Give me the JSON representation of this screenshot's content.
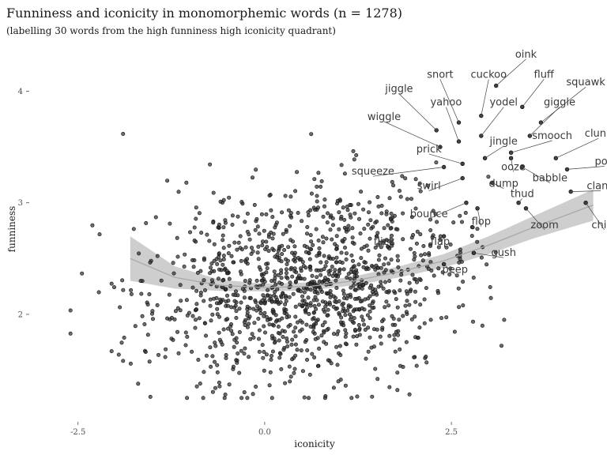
{
  "chart_data": {
    "type": "scatter",
    "title": "Funniness and iconicity in monomorphemic words (n = 1278)",
    "subtitle": "(labelling 30 words from the high funniness high iconicity quadrant)",
    "xlabel": "iconicity",
    "ylabel": "funniness",
    "xlim": [
      -3.1,
      4.5
    ],
    "ylim": [
      1.05,
      4.45
    ],
    "x_ticks": [
      -2.5,
      0.0,
      2.5
    ],
    "x_tick_labels": [
      "-2.5",
      "0.0",
      "2.5"
    ],
    "y_ticks": [
      2,
      3,
      4
    ],
    "y_tick_labels": [
      "2",
      "3",
      "4"
    ],
    "grid": false,
    "n_points": 1278,
    "cloud": {
      "x_mean": 0.55,
      "x_sd": 1.05,
      "y_mean": 2.28,
      "y_sd": 0.42,
      "x_min": -2.6,
      "x_max": 4.45,
      "y_min": 1.25,
      "y_max": 3.75,
      "seed": 1278
    },
    "smooth": {
      "method": "loess",
      "x": [
        -1.8,
        -1.2,
        -0.6,
        0.0,
        0.6,
        1.2,
        1.8,
        2.4,
        3.0,
        3.6,
        4.4
      ],
      "y": [
        2.5,
        2.33,
        2.26,
        2.24,
        2.25,
        2.3,
        2.38,
        2.48,
        2.62,
        2.78,
        2.98
      ],
      "se": [
        0.2,
        0.1,
        0.05,
        0.035,
        0.035,
        0.04,
        0.05,
        0.06,
        0.08,
        0.1,
        0.14
      ]
    },
    "labelled_words": [
      {
        "word": "oink",
        "x": 3.1,
        "y": 4.05,
        "lx": 3.5,
        "ly": 4.33
      },
      {
        "word": "snort",
        "x": 2.6,
        "y": 3.72,
        "lx": 2.35,
        "ly": 4.15
      },
      {
        "word": "cuckoo",
        "x": 2.9,
        "y": 3.78,
        "lx": 3.0,
        "ly": 4.15
      },
      {
        "word": "fluff",
        "x": 3.45,
        "y": 3.86,
        "lx": 3.74,
        "ly": 4.15
      },
      {
        "word": "jiggle",
        "x": 2.3,
        "y": 3.65,
        "lx": 1.8,
        "ly": 4.02
      },
      {
        "word": "squawk",
        "x": 3.7,
        "y": 3.72,
        "lx": 4.3,
        "ly": 4.08
      },
      {
        "word": "yahoo",
        "x": 2.6,
        "y": 3.55,
        "lx": 2.43,
        "ly": 3.9
      },
      {
        "word": "yodel",
        "x": 2.9,
        "y": 3.6,
        "lx": 3.2,
        "ly": 3.9
      },
      {
        "word": "giggle",
        "x": 3.55,
        "y": 3.6,
        "lx": 3.95,
        "ly": 3.9
      },
      {
        "word": "wiggle",
        "x": 2.35,
        "y": 3.5,
        "lx": 1.6,
        "ly": 3.77
      },
      {
        "word": "smooch",
        "x": 3.3,
        "y": 3.45,
        "lx": 3.85,
        "ly": 3.6
      },
      {
        "word": "clunk",
        "x": 3.9,
        "y": 3.4,
        "lx": 4.47,
        "ly": 3.62
      },
      {
        "word": "jingle",
        "x": 2.95,
        "y": 3.4,
        "lx": 3.2,
        "ly": 3.55
      },
      {
        "word": "prick",
        "x": 2.65,
        "y": 3.35,
        "lx": 2.2,
        "ly": 3.48
      },
      {
        "word": "pop",
        "x": 4.05,
        "y": 3.3,
        "lx": 4.55,
        "ly": 3.37
      },
      {
        "word": "ooze",
        "x": 3.3,
        "y": 3.4,
        "lx": 3.33,
        "ly": 3.32
      },
      {
        "word": "squeeze",
        "x": 2.4,
        "y": 3.32,
        "lx": 1.45,
        "ly": 3.28
      },
      {
        "word": "babble",
        "x": 3.45,
        "y": 3.32,
        "lx": 3.82,
        "ly": 3.22
      },
      {
        "word": "swirl",
        "x": 2.65,
        "y": 3.22,
        "lx": 2.2,
        "ly": 3.15
      },
      {
        "word": "dump",
        "x": 3.05,
        "y": 3.18,
        "lx": 3.2,
        "ly": 3.17
      },
      {
        "word": "clang",
        "x": 4.1,
        "y": 3.1,
        "lx": 4.5,
        "ly": 3.15
      },
      {
        "word": "thud",
        "x": 3.4,
        "y": 3.0,
        "lx": 3.45,
        "ly": 3.08
      },
      {
        "word": "bounce",
        "x": 2.7,
        "y": 3.0,
        "lx": 2.2,
        "ly": 2.9
      },
      {
        "word": "flop",
        "x": 2.85,
        "y": 2.95,
        "lx": 2.9,
        "ly": 2.83
      },
      {
        "word": "zoom",
        "x": 3.5,
        "y": 2.95,
        "lx": 3.75,
        "ly": 2.8
      },
      {
        "word": "chirp",
        "x": 4.3,
        "y": 3.0,
        "lx": 4.55,
        "ly": 2.8
      },
      {
        "word": "flick",
        "x": 1.5,
        "y": 2.7,
        "lx": 1.6,
        "ly": 2.65
      },
      {
        "word": "flap",
        "x": 2.4,
        "y": 2.7,
        "lx": 2.35,
        "ly": 2.65
      },
      {
        "word": "gush",
        "x": 2.8,
        "y": 2.55,
        "lx": 3.2,
        "ly": 2.55
      },
      {
        "word": "peep",
        "x": 2.4,
        "y": 2.45,
        "lx": 2.55,
        "ly": 2.4
      }
    ]
  }
}
